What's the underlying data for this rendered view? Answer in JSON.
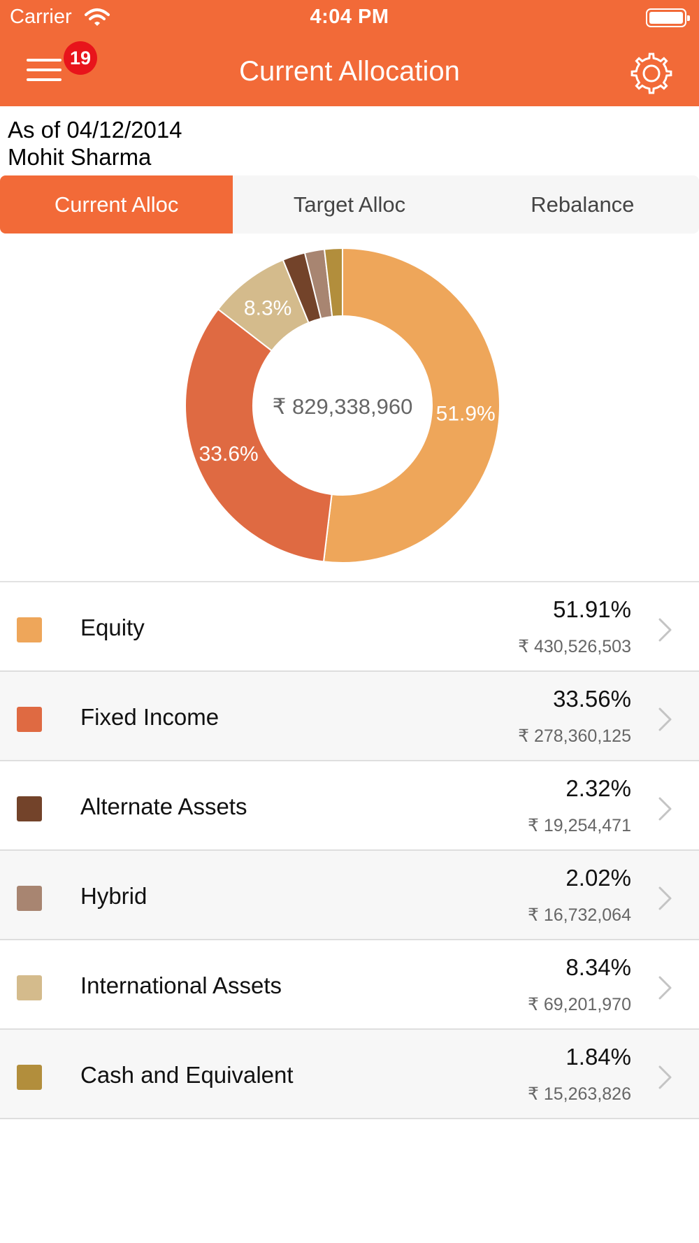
{
  "status": {
    "carrier": "Carrier",
    "time": "4:04 PM"
  },
  "header": {
    "title": "Current Allocation",
    "badge_count": "19"
  },
  "info": {
    "as_of": "As of 04/12/2014",
    "name": "Mohit Sharma"
  },
  "tabs": [
    {
      "label": "Current Alloc",
      "active": true
    },
    {
      "label": "Target Alloc",
      "active": false
    },
    {
      "label": "Rebalance",
      "active": false
    }
  ],
  "chart_data": {
    "type": "pie",
    "center_label": "₹ 829,338,960",
    "slices": [
      {
        "name": "Equity",
        "value": 51.91,
        "label": "51.9%",
        "color": "#eea65a"
      },
      {
        "name": "Fixed Income",
        "value": 33.56,
        "label": "33.6%",
        "color": "#df6a42"
      },
      {
        "name": "International Assets",
        "value": 8.34,
        "label": "8.3%",
        "color": "#d4bb8c"
      },
      {
        "name": "Alternate Assets",
        "value": 2.32,
        "label": "",
        "color": "#73432a"
      },
      {
        "name": "Hybrid",
        "value": 2.02,
        "label": "",
        "color": "#a88571"
      },
      {
        "name": "Cash and Equivalent",
        "value": 1.84,
        "label": "",
        "color": "#b28e3c"
      }
    ]
  },
  "assets": [
    {
      "name": "Equity",
      "pct": "51.91%",
      "amount": "₹ 430,526,503",
      "color": "#eea65a"
    },
    {
      "name": "Fixed Income",
      "pct": "33.56%",
      "amount": "₹ 278,360,125",
      "color": "#df6a42"
    },
    {
      "name": "Alternate Assets",
      "pct": "2.32%",
      "amount": "₹ 19,254,471",
      "color": "#73432a"
    },
    {
      "name": "Hybrid",
      "pct": "2.02%",
      "amount": "₹ 16,732,064",
      "color": "#a88571"
    },
    {
      "name": "International Assets",
      "pct": "8.34%",
      "amount": "₹ 69,201,970",
      "color": "#d4bb8c"
    },
    {
      "name": "Cash and Equivalent",
      "pct": "1.84%",
      "amount": "₹ 15,263,826",
      "color": "#b28e3c"
    }
  ],
  "colors": {
    "accent": "#f26a38",
    "badge": "#e8141b"
  }
}
